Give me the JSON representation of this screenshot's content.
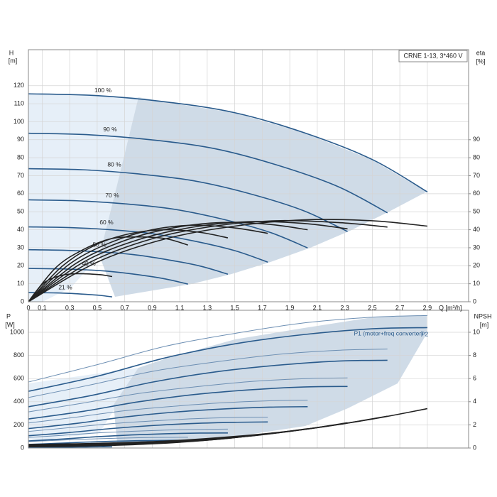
{
  "chart_data": [
    {
      "type": "line",
      "title": "CRNE 1-13, 3*460 V",
      "ylabel": "H",
      "yunit": "[m]",
      "y2label": "eta",
      "y2unit": "[%]",
      "xlabel": "Q [m³/h]",
      "xlim": [
        0,
        3.2
      ],
      "xticks": [
        0,
        0.1,
        0.3,
        0.5,
        0.7,
        0.9,
        1.1,
        1.3,
        1.5,
        1.7,
        1.9,
        2.1,
        2.3,
        2.5,
        2.7,
        2.9
      ],
      "ylim": [
        0,
        140
      ],
      "yticks": [
        0,
        10,
        20,
        30,
        40,
        50,
        60,
        70,
        80,
        90,
        100,
        110,
        120
      ],
      "y2lim": [
        0,
        140
      ],
      "y2ticks": [
        0,
        10,
        20,
        30,
        40,
        50,
        60,
        70,
        80,
        90
      ],
      "grid": true,
      "series": [
        {
          "name": "100 %",
          "color": "#2a5b8c",
          "x": [
            0,
            0.5,
            1.0,
            1.5,
            2.0,
            2.5,
            2.9
          ],
          "values": [
            115.5,
            114.5,
            111,
            105,
            94,
            79,
            61
          ]
        },
        {
          "name": "90 %",
          "color": "#2a5b8c",
          "x": [
            0,
            0.45,
            0.9,
            1.35,
            1.8,
            2.25,
            2.61
          ],
          "values": [
            93.6,
            92.7,
            89.9,
            85.1,
            76.1,
            64.0,
            49.4
          ]
        },
        {
          "name": "80 %",
          "color": "#2a5b8c",
          "x": [
            0,
            0.4,
            0.8,
            1.2,
            1.6,
            2.0,
            2.32
          ],
          "values": [
            73.9,
            73.3,
            71.0,
            67.2,
            60.2,
            50.6,
            39.0
          ]
        },
        {
          "name": "70 %",
          "color": "#2a5b8c",
          "x": [
            0,
            0.35,
            0.7,
            1.05,
            1.4,
            1.75,
            2.03
          ],
          "values": [
            56.6,
            56.1,
            54.4,
            51.5,
            46.1,
            38.7,
            29.9
          ]
        },
        {
          "name": "60 %",
          "color": "#2a5b8c",
          "x": [
            0,
            0.3,
            0.6,
            0.9,
            1.2,
            1.5,
            1.74
          ],
          "values": [
            41.6,
            41.2,
            40.0,
            37.8,
            33.8,
            28.4,
            22.0
          ]
        },
        {
          "name": "50 %",
          "color": "#2a5b8c",
          "x": [
            0,
            0.25,
            0.5,
            0.75,
            1.0,
            1.25,
            1.45
          ],
          "values": [
            28.9,
            28.6,
            27.8,
            26.3,
            23.5,
            19.8,
            15.3
          ]
        },
        {
          "name": "40 %",
          "color": "#2a5b8c",
          "x": [
            0,
            0.2,
            0.4,
            0.6,
            0.8,
            1.0,
            1.16
          ],
          "values": [
            18.5,
            18.3,
            17.8,
            16.8,
            15.0,
            12.6,
            9.8
          ]
        },
        {
          "name": "21 %",
          "color": "#2a5b8c",
          "x": [
            0,
            0.105,
            0.21,
            0.315,
            0.42,
            0.525,
            0.609
          ],
          "values": [
            5.1,
            5.0,
            4.9,
            4.6,
            4.1,
            3.5,
            2.7
          ]
        },
        {
          "color": "#222222",
          "axis": "y2",
          "x": [
            0,
            0.5,
            1.0,
            1.5,
            2.0,
            2.5,
            2.9
          ],
          "values": [
            0,
            22,
            35,
            42,
            45.5,
            45,
            42
          ]
        },
        {
          "color": "#222222",
          "axis": "y2",
          "x": [
            0,
            0.45,
            0.9,
            1.35,
            1.8,
            2.25,
            2.61
          ],
          "values": [
            0,
            22,
            35,
            42,
            45,
            44,
            41.5
          ]
        },
        {
          "color": "#222222",
          "axis": "y2",
          "x": [
            0,
            0.4,
            0.8,
            1.2,
            1.6,
            2.0,
            2.32
          ],
          "values": [
            0,
            22,
            34.5,
            41.5,
            44.5,
            43.5,
            40.5
          ]
        },
        {
          "color": "#222222",
          "axis": "y2",
          "x": [
            0,
            0.35,
            0.7,
            1.05,
            1.4,
            1.75,
            2.03
          ],
          "values": [
            0,
            21.5,
            34,
            41,
            44,
            43,
            40
          ]
        },
        {
          "color": "#222222",
          "axis": "y2",
          "x": [
            0,
            0.3,
            0.6,
            0.9,
            1.2,
            1.5,
            1.74
          ],
          "values": [
            0,
            21,
            33,
            40,
            42.5,
            41,
            38
          ]
        },
        {
          "color": "#222222",
          "axis": "y2",
          "x": [
            0,
            0.25,
            0.5,
            0.75,
            1.0,
            1.25,
            1.45
          ],
          "values": [
            0,
            20,
            32,
            38,
            40,
            38.5,
            35.5
          ]
        },
        {
          "color": "#222222",
          "axis": "y2",
          "x": [
            0,
            0.2,
            0.4,
            0.6,
            0.8,
            1.0,
            1.16
          ],
          "values": [
            0,
            19,
            29,
            35,
            36,
            35,
            31.5
          ]
        },
        {
          "color": "#222222",
          "axis": "y2",
          "x": [
            0,
            0.105,
            0.21,
            0.315,
            0.42,
            0.525,
            0.609
          ],
          "values": [
            0,
            10,
            14,
            15.5,
            15.5,
            15,
            14
          ]
        }
      ]
    },
    {
      "type": "line",
      "ylabel": "P",
      "yunit": "[W]",
      "y2label": "NPSH",
      "y2unit": "[m]",
      "xlim": [
        0,
        3.2
      ],
      "ylim": [
        0,
        1190
      ],
      "yticks": [
        0,
        200,
        400,
        600,
        800,
        1000
      ],
      "y2lim": [
        0,
        11.9
      ],
      "y2ticks": [
        0,
        2,
        4,
        6,
        8,
        10
      ],
      "grid": true,
      "series": [
        {
          "name": "P1 (motor+freq converter)",
          "color": "#6d8fb3",
          "x": [
            0,
            0.5,
            1.0,
            1.5,
            2.0,
            2.5,
            2.9
          ],
          "values": [
            570,
            720,
            880,
            990,
            1080,
            1130,
            1145
          ]
        },
        {
          "color": "#6d8fb3",
          "x": [
            0,
            0.45,
            0.9,
            1.35,
            1.8,
            2.25,
            2.61
          ],
          "values": [
            436,
            545,
            662,
            742,
            807,
            844,
            855
          ]
        },
        {
          "color": "#6d8fb3",
          "x": [
            0,
            0.4,
            0.8,
            1.2,
            1.6,
            2.0,
            2.32
          ],
          "values": [
            312,
            389,
            471,
            527,
            573,
            599,
            606
          ]
        },
        {
          "color": "#6d8fb3",
          "x": [
            0,
            0.35,
            0.7,
            1.05,
            1.4,
            1.75,
            2.03
          ],
          "values": [
            216,
            267,
            322,
            360,
            390,
            408,
            413
          ]
        },
        {
          "color": "#6d8fb3",
          "x": [
            0,
            0.3,
            0.6,
            0.9,
            1.2,
            1.5,
            1.74
          ],
          "values": [
            143,
            176,
            210,
            234,
            253,
            264,
            267
          ]
        },
        {
          "color": "#6d8fb3",
          "x": [
            0,
            0.25,
            0.5,
            0.75,
            1.0,
            1.25,
            1.45
          ],
          "values": [
            91,
            110,
            130,
            144,
            155,
            161,
            163
          ]
        },
        {
          "color": "#6d8fb3",
          "x": [
            0,
            0.2,
            0.4,
            0.6,
            0.8,
            1.0,
            1.16
          ],
          "values": [
            56,
            66,
            76,
            83,
            89,
            92,
            93
          ]
        },
        {
          "color": "#6d8fb3",
          "x": [
            0,
            0.105,
            0.21,
            0.315,
            0.42,
            0.525,
            0.609
          ],
          "values": [
            25,
            26,
            28,
            29,
            30,
            30,
            31
          ]
        },
        {
          "name": "P2",
          "color": "#2a5b8c",
          "x": [
            0,
            0.5,
            1.0,
            1.5,
            2.0,
            2.5,
            2.9
          ],
          "values": [
            490,
            620,
            780,
            900,
            980,
            1030,
            1040
          ]
        },
        {
          "color": "#2a5b8c",
          "x": [
            0,
            0.45,
            0.9,
            1.35,
            1.8,
            2.25,
            2.61
          ],
          "values": [
            357,
            452,
            569,
            656,
            714,
            751,
            758
          ]
        },
        {
          "color": "#2a5b8c",
          "x": [
            0,
            0.4,
            0.8,
            1.2,
            1.6,
            2.0,
            2.32
          ],
          "values": [
            251,
            317,
            399,
            461,
            502,
            527,
            532
          ]
        },
        {
          "color": "#2a5b8c",
          "x": [
            0,
            0.35,
            0.7,
            1.05,
            1.4,
            1.75,
            2.03
          ],
          "values": [
            168,
            213,
            268,
            309,
            336,
            353,
            357
          ]
        },
        {
          "color": "#2a5b8c",
          "x": [
            0,
            0.3,
            0.6,
            0.9,
            1.2,
            1.5,
            1.74
          ],
          "values": [
            106,
            134,
            168,
            194,
            212,
            222,
            225
          ]
        },
        {
          "color": "#2a5b8c",
          "x": [
            0,
            0.25,
            0.5,
            0.75,
            1.0,
            1.25,
            1.45
          ],
          "values": [
            61,
            78,
            98,
            113,
            123,
            129,
            130
          ]
        },
        {
          "color": "#2a5b8c",
          "x": [
            0,
            0.2,
            0.4,
            0.6,
            0.8,
            1.0,
            1.16
          ],
          "values": [
            31,
            40,
            50,
            58,
            63,
            66,
            67
          ]
        },
        {
          "color": "#2a5b8c",
          "x": [
            0,
            0.105,
            0.21,
            0.315,
            0.42,
            0.525,
            0.609
          ],
          "values": [
            5,
            6,
            7,
            8,
            9,
            10,
            10
          ]
        },
        {
          "color": "#222222",
          "axis": "y2",
          "x": [
            0,
            0.5,
            1.0,
            1.5,
            2.0,
            2.5,
            2.9
          ],
          "values": [
            0.3,
            0.4,
            0.6,
            1.0,
            1.6,
            2.5,
            3.4
          ]
        },
        {
          "color": "#222222",
          "axis": "y2",
          "x": [
            0,
            0.45,
            0.9,
            1.35,
            1.8,
            2.25,
            2.61
          ],
          "values": [
            0.24,
            0.32,
            0.49,
            0.81,
            1.3,
            2.03,
            2.75
          ]
        },
        {
          "color": "#222222",
          "axis": "y2",
          "x": [
            0,
            0.4,
            0.8,
            1.2,
            1.6,
            2.0,
            2.32
          ],
          "values": [
            0.19,
            0.26,
            0.38,
            0.64,
            1.02,
            1.6,
            2.18
          ]
        },
        {
          "color": "#222222",
          "axis": "y2",
          "x": [
            0,
            0.35,
            0.7,
            1.05,
            1.4,
            1.75,
            2.03
          ],
          "values": [
            0.15,
            0.2,
            0.29,
            0.49,
            0.78,
            1.23,
            1.67
          ]
        },
        {
          "color": "#222222",
          "axis": "y2",
          "x": [
            0,
            0.3,
            0.6,
            0.9,
            1.2,
            1.5,
            1.74
          ],
          "values": [
            0.11,
            0.14,
            0.22,
            0.36,
            0.58,
            0.9,
            1.22
          ]
        }
      ]
    }
  ]
}
